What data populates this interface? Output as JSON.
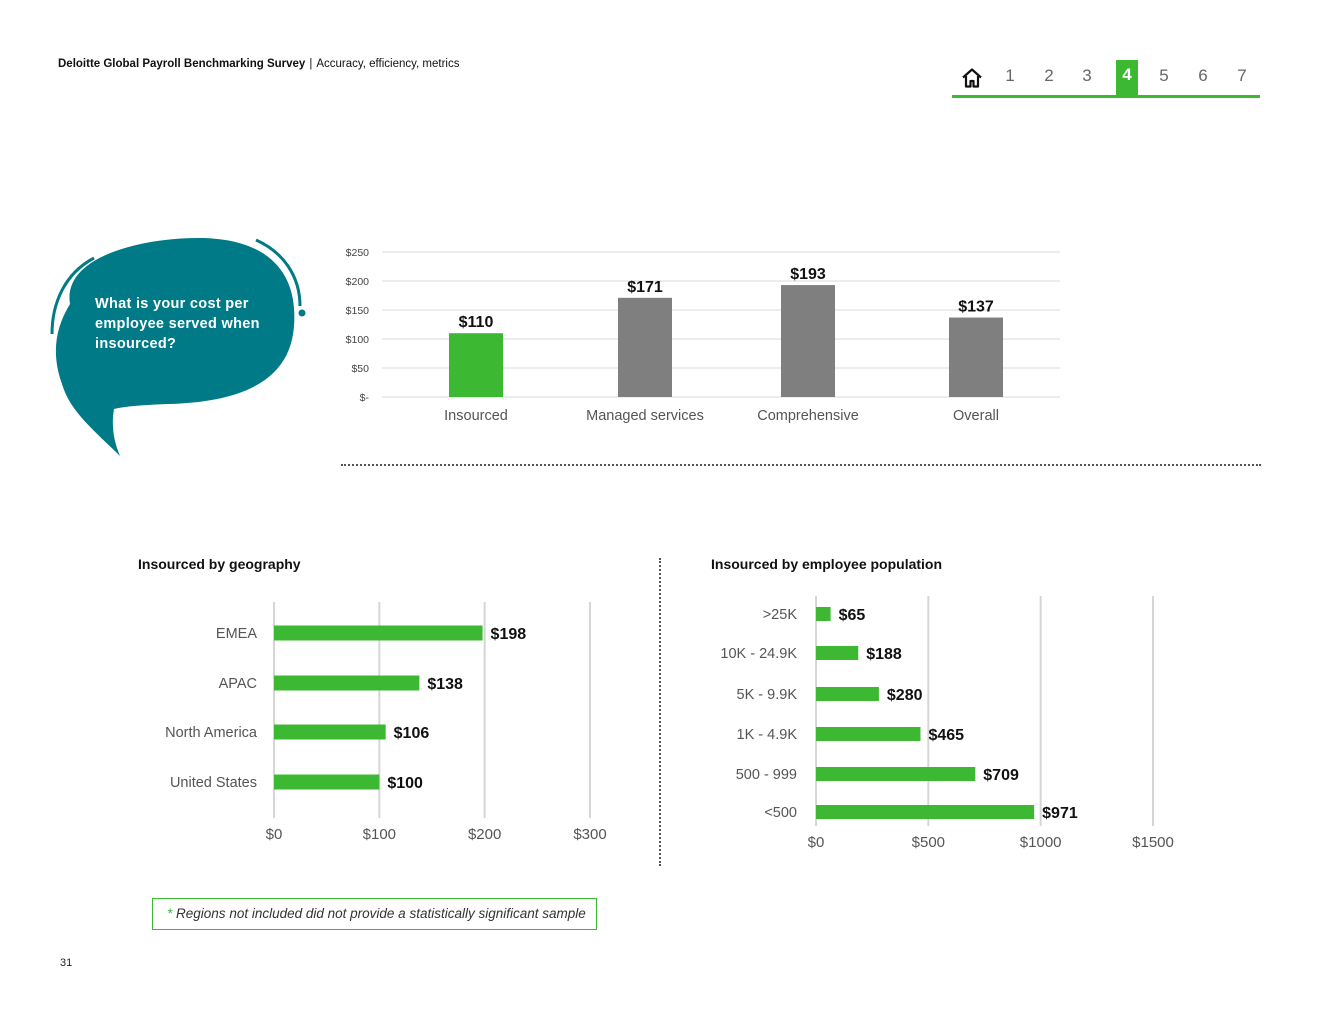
{
  "header": {
    "title": "Deloitte Global Payroll Benchmarking Survey",
    "separator": "|",
    "subtitle": "Accuracy, efficiency, metrics"
  },
  "nav": {
    "items": [
      "1",
      "2",
      "3",
      "4",
      "5",
      "6",
      "7"
    ],
    "active": "4",
    "home_icon": "home-icon",
    "accent": "#3db832"
  },
  "question": {
    "text": "What is your cost per employee served when insourced?",
    "bubble_color": "#007a87"
  },
  "chart_data": [
    {
      "type": "bar",
      "title": "",
      "categories": [
        "Insourced",
        "Managed services",
        "Comprehensive",
        "Overall"
      ],
      "values": [
        110,
        171,
        193,
        137
      ],
      "value_labels": [
        "$110",
        "$171",
        "$193",
        "$137"
      ],
      "tick_labels": [
        "$-",
        "$50",
        "$100",
        "$150",
        "$200",
        "$250"
      ],
      "ticks": [
        0,
        50,
        100,
        150,
        200,
        250
      ],
      "ylim": [
        0,
        250
      ],
      "colors": [
        "#3db832",
        "#7f7f7f",
        "#7f7f7f",
        "#7f7f7f"
      ],
      "grid": true
    },
    {
      "type": "bar",
      "orientation": "horizontal",
      "title": "Insourced by geography",
      "categories": [
        "EMEA",
        "APAC",
        "North America",
        "United States"
      ],
      "values": [
        198,
        138,
        106,
        100
      ],
      "value_labels": [
        "$198",
        "$138",
        "$106",
        "$100"
      ],
      "tick_labels": [
        "$0",
        "$100",
        "$200",
        "$300"
      ],
      "ticks": [
        0,
        100,
        200,
        300
      ],
      "xlim": [
        0,
        300
      ],
      "color": "#3db832",
      "grid": true
    },
    {
      "type": "bar",
      "orientation": "horizontal",
      "title": "Insourced by employee population",
      "categories": [
        ">25K",
        "10K - 24.9K",
        "5K - 9.9K",
        "1K - 4.9K",
        "500 - 999",
        "<500"
      ],
      "values": [
        65,
        188,
        280,
        465,
        709,
        971
      ],
      "value_labels": [
        "$65",
        "$188",
        "$280",
        "$465",
        "$709",
        "$971"
      ],
      "tick_labels": [
        "$0",
        "$500",
        "$1000",
        "$1500"
      ],
      "ticks": [
        0,
        500,
        1000,
        1500
      ],
      "xlim": [
        0,
        1500
      ],
      "color": "#3db832",
      "grid": true
    }
  ],
  "footnote": {
    "star": "*",
    "text": "Regions not included did not provide a statistically significant sample"
  },
  "page_number": "31"
}
